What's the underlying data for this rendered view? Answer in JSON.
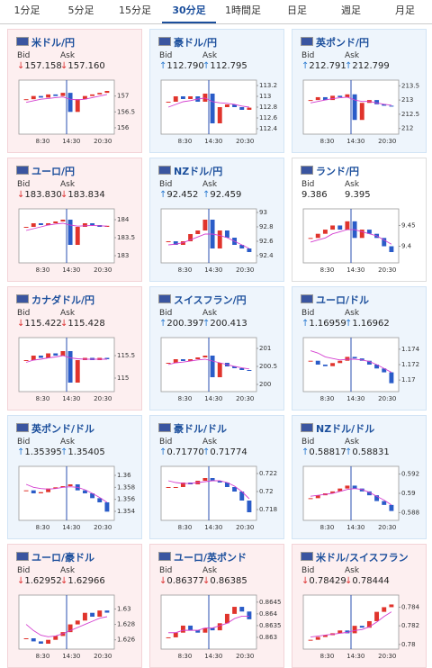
{
  "tabs": [
    "1分足",
    "5分足",
    "15分足",
    "30分足",
    "1時間足",
    "日足",
    "週足",
    "月足"
  ],
  "active_tab": 3,
  "labels": {
    "bid": "Bid",
    "ask": "Ask"
  },
  "cards": [
    {
      "pair": "米ドル/円",
      "bid": "157.158",
      "ask": "157.160",
      "direction": "down",
      "chart": {
        "type": "candlestick",
        "ylim": [
          155.8,
          157.5
        ],
        "yticks": [
          157,
          156.5,
          156
        ],
        "xlabels": [
          "8:30",
          "14:30",
          "20:30"
        ],
        "values": [
          156.9,
          157.0,
          156.95,
          157.05,
          157.0,
          157.1,
          156.5,
          156.9,
          157.0,
          157.05,
          157.1,
          157.16
        ],
        "ma": [
          156.8,
          156.85,
          156.9,
          156.92,
          156.95,
          156.97,
          156.9,
          156.88,
          156.9,
          156.95,
          157.0,
          157.05
        ]
      }
    },
    {
      "pair": "豪ドル/円",
      "bid": "112.790",
      "ask": "112.795",
      "direction": "up",
      "chart": {
        "type": "candlestick",
        "ylim": [
          112.3,
          113.3
        ],
        "yticks": [
          113.2,
          113,
          112.8,
          112.6,
          112.4
        ],
        "xlabels": [
          "8:30",
          "14:30",
          "20:30"
        ],
        "values": [
          112.9,
          113.0,
          112.95,
          113.0,
          112.9,
          113.05,
          112.5,
          112.8,
          112.85,
          112.8,
          112.75,
          112.79
        ],
        "ma": [
          112.8,
          112.85,
          112.9,
          112.92,
          112.95,
          112.97,
          112.9,
          112.88,
          112.87,
          112.85,
          112.82,
          112.8
        ]
      }
    },
    {
      "pair": "英ポンド/円",
      "bid": "212.791",
      "ask": "212.799",
      "direction": "up",
      "chart": {
        "type": "candlestick",
        "ylim": [
          211.8,
          213.7
        ],
        "yticks": [
          213.5,
          213,
          212.5,
          212
        ],
        "xlabels": [
          "8:30",
          "14:30",
          "20:30"
        ],
        "values": [
          213.0,
          213.1,
          213.0,
          213.15,
          213.1,
          213.2,
          212.3,
          212.9,
          213.0,
          212.85,
          212.8,
          212.79
        ],
        "ma": [
          212.9,
          212.95,
          213.0,
          213.05,
          213.08,
          213.1,
          213.0,
          212.95,
          212.95,
          212.9,
          212.85,
          212.82
        ]
      }
    },
    {
      "pair": "ユーロ/円",
      "bid": "183.830",
      "ask": "183.834",
      "direction": "down",
      "chart": {
        "type": "candlestick",
        "ylim": [
          182.8,
          184.3
        ],
        "yticks": [
          184,
          183.5,
          183
        ],
        "xlabels": [
          "8:30",
          "14:30",
          "20:30"
        ],
        "values": [
          183.8,
          183.9,
          183.85,
          183.9,
          183.95,
          184.0,
          183.3,
          183.8,
          183.9,
          183.85,
          183.8,
          183.83
        ],
        "ma": [
          183.7,
          183.75,
          183.8,
          183.85,
          183.88,
          183.9,
          183.85,
          183.82,
          183.83,
          183.84,
          183.83,
          183.82
        ]
      }
    },
    {
      "pair": "NZドル/円",
      "bid": "92.452",
      "ask": "92.459",
      "direction": "up",
      "chart": {
        "type": "candlestick",
        "ylim": [
          92.3,
          93.05
        ],
        "yticks": [
          93,
          92.8,
          92.6,
          92.4
        ],
        "xlabels": [
          "8:30",
          "14:30",
          "20:30"
        ],
        "values": [
          92.6,
          92.55,
          92.6,
          92.7,
          92.75,
          92.9,
          92.5,
          92.75,
          92.65,
          92.55,
          92.5,
          92.45
        ],
        "ma": [
          92.55,
          92.56,
          92.58,
          92.62,
          92.66,
          92.7,
          92.7,
          92.68,
          92.65,
          92.6,
          92.55,
          92.5
        ]
      }
    },
    {
      "pair": "ランド/円",
      "bid": "9.386",
      "ask": "9.395",
      "direction": null,
      "chart": {
        "type": "candlestick",
        "ylim": [
          9.36,
          9.49
        ],
        "yticks": [
          9.45,
          9.4
        ],
        "xlabels": [
          "8:30",
          "14:30",
          "20:30"
        ],
        "values": [
          9.42,
          9.43,
          9.44,
          9.45,
          9.44,
          9.46,
          9.42,
          9.44,
          9.43,
          9.42,
          9.4,
          9.386
        ],
        "ma": [
          9.41,
          9.415,
          9.42,
          9.43,
          9.435,
          9.44,
          9.44,
          9.435,
          9.43,
          9.425,
          9.415,
          9.405
        ]
      }
    },
    {
      "pair": "カナダドル/円",
      "bid": "115.422",
      "ask": "115.428",
      "direction": "down",
      "chart": {
        "type": "candlestick",
        "ylim": [
          114.7,
          115.9
        ],
        "yticks": [
          115.5,
          115
        ],
        "xlabels": [
          "8:30",
          "14:30",
          "20:30"
        ],
        "values": [
          115.4,
          115.5,
          115.45,
          115.55,
          115.5,
          115.6,
          114.9,
          115.4,
          115.45,
          115.4,
          115.45,
          115.42
        ],
        "ma": [
          115.35,
          115.4,
          115.42,
          115.45,
          115.47,
          115.5,
          115.45,
          115.43,
          115.42,
          115.42,
          115.42,
          115.42
        ]
      }
    },
    {
      "pair": "スイスフラン/円",
      "bid": "200.397",
      "ask": "200.413",
      "direction": "up",
      "chart": {
        "type": "candlestick",
        "ylim": [
          199.8,
          201.3
        ],
        "yticks": [
          201,
          200.5,
          200
        ],
        "xlabels": [
          "8:30",
          "14:30",
          "20:30"
        ],
        "values": [
          200.6,
          200.7,
          200.65,
          200.7,
          200.75,
          200.8,
          200.2,
          200.6,
          200.5,
          200.45,
          200.4,
          200.397
        ],
        "ma": [
          200.55,
          200.6,
          200.62,
          200.65,
          200.68,
          200.7,
          200.65,
          200.6,
          200.55,
          200.5,
          200.46,
          200.43
        ]
      }
    },
    {
      "pair": "ユーロ/ドル",
      "bid": "1.16959",
      "ask": "1.16962",
      "direction": "up",
      "chart": {
        "type": "candlestick",
        "ylim": [
          1.1685,
          1.1755
        ],
        "yticks": [
          1.174,
          1.172,
          1.17
        ],
        "xlabels": [
          "8:30",
          "14:30",
          "20:30"
        ],
        "values": [
          1.1725,
          1.172,
          1.1718,
          1.1722,
          1.1725,
          1.173,
          1.1728,
          1.1725,
          1.172,
          1.1715,
          1.171,
          1.16959
        ],
        "ma": [
          1.1738,
          1.1735,
          1.173,
          1.1728,
          1.1726,
          1.1727,
          1.1727,
          1.1726,
          1.1724,
          1.172,
          1.1715,
          1.171
        ]
      }
    },
    {
      "pair": "英ポンド/ドル",
      "bid": "1.35395",
      "ask": "1.35405",
      "direction": "up",
      "chart": {
        "type": "candlestick",
        "ylim": [
          1.3525,
          1.3615
        ],
        "yticks": [
          1.36,
          1.358,
          1.356,
          1.354
        ],
        "xlabels": [
          "8:30",
          "14:30",
          "20:30"
        ],
        "values": [
          1.3575,
          1.357,
          1.3572,
          1.3578,
          1.358,
          1.3582,
          1.3585,
          1.3575,
          1.357,
          1.3562,
          1.3555,
          1.35395
        ],
        "ma": [
          1.3585,
          1.358,
          1.3578,
          1.3577,
          1.3578,
          1.358,
          1.3581,
          1.358,
          1.3576,
          1.357,
          1.3563,
          1.3555
        ]
      }
    },
    {
      "pair": "豪ドル/ドル",
      "bid": "0.71770",
      "ask": "0.71774",
      "direction": "up",
      "chart": {
        "type": "candlestick",
        "ylim": [
          0.7168,
          0.7228
        ],
        "yticks": [
          0.722,
          0.72,
          0.718
        ],
        "xlabels": [
          "8:30",
          "14:30",
          "20:30"
        ],
        "values": [
          0.7205,
          0.7205,
          0.721,
          0.7208,
          0.7212,
          0.7215,
          0.7212,
          0.721,
          0.7205,
          0.72,
          0.719,
          0.7177
        ],
        "ma": [
          0.7212,
          0.721,
          0.7209,
          0.7209,
          0.721,
          0.7211,
          0.7212,
          0.7212,
          0.721,
          0.7206,
          0.72,
          0.7192
        ]
      }
    },
    {
      "pair": "NZドル/ドル",
      "bid": "0.58817",
      "ask": "0.58831",
      "direction": "up",
      "chart": {
        "type": "candlestick",
        "ylim": [
          0.5872,
          0.5928
        ],
        "yticks": [
          0.592,
          0.59,
          0.588
        ],
        "xlabels": [
          "8:30",
          "14:30",
          "20:30"
        ],
        "values": [
          0.5895,
          0.5898,
          0.59,
          0.5902,
          0.5905,
          0.5908,
          0.5905,
          0.5902,
          0.5898,
          0.5892,
          0.5888,
          0.58817
        ],
        "ma": [
          0.5897,
          0.5898,
          0.5899,
          0.59,
          0.5902,
          0.5904,
          0.5905,
          0.5904,
          0.5901,
          0.5897,
          0.5893,
          0.5888
        ]
      }
    },
    {
      "pair": "ユーロ/豪ドル",
      "bid": "1.62952",
      "ask": "1.62966",
      "direction": "down",
      "chart": {
        "type": "candlestick",
        "ylim": [
          1.6248,
          1.6318
        ],
        "yticks": [
          1.63,
          1.628,
          1.626
        ],
        "xlabels": [
          "8:30",
          "14:30",
          "20:30"
        ],
        "values": [
          1.6262,
          1.6258,
          1.6255,
          1.626,
          1.6265,
          1.627,
          1.628,
          1.6285,
          1.6295,
          1.629,
          1.6298,
          1.62952
        ],
        "ma": [
          1.628,
          1.6272,
          1.6266,
          1.6264,
          1.6265,
          1.6268,
          1.6272,
          1.6276,
          1.628,
          1.6284,
          1.6288,
          1.629
        ]
      }
    },
    {
      "pair": "ユーロ/英ポンド",
      "bid": "0.86377",
      "ask": "0.86385",
      "direction": "down",
      "chart": {
        "type": "candlestick",
        "ylim": [
          0.8625,
          0.8648
        ],
        "yticks": [
          0.8645,
          0.864,
          0.8635,
          0.863
        ],
        "xlabels": [
          "8:30",
          "14:30",
          "20:30"
        ],
        "values": [
          0.863,
          0.8632,
          0.8635,
          0.8633,
          0.8632,
          0.8634,
          0.8633,
          0.8636,
          0.864,
          0.8643,
          0.8641,
          0.86377
        ],
        "ma": [
          0.8632,
          0.8632,
          0.8633,
          0.8633,
          0.8633,
          0.8634,
          0.8634,
          0.8635,
          0.8636,
          0.8638,
          0.8639,
          0.8639
        ]
      }
    },
    {
      "pair": "米ドル/スイスフラン",
      "bid": "0.78429",
      "ask": "0.78444",
      "direction": "down",
      "chart": {
        "type": "candlestick",
        "ylim": [
          0.7795,
          0.7853
        ],
        "yticks": [
          0.784,
          0.782,
          0.78
        ],
        "xlabels": [
          "8:30",
          "14:30",
          "20:30"
        ],
        "values": [
          0.7805,
          0.7808,
          0.781,
          0.7812,
          0.7815,
          0.7812,
          0.782,
          0.7818,
          0.7825,
          0.7835,
          0.784,
          0.78429
        ],
        "ma": [
          0.7808,
          0.7809,
          0.781,
          0.7811,
          0.7812,
          0.7813,
          0.7815,
          0.7816,
          0.7819,
          0.7824,
          0.783,
          0.7835
        ]
      }
    }
  ]
}
